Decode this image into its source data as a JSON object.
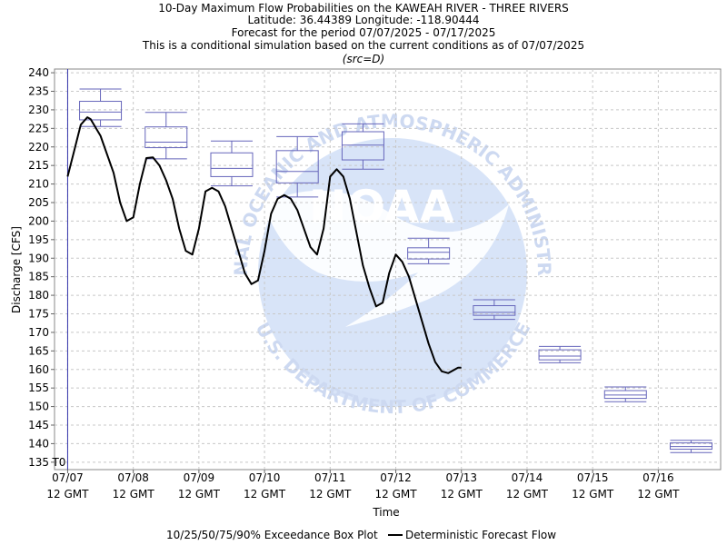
{
  "title_lines": [
    "10-Day Maximum Flow Probabilities on the KAWEAH RIVER - THREE RIVERS",
    "Latitude: 36.44389 Longitude: -118.90444",
    "Forecast for the period 07/07/2025 - 07/17/2025",
    "This is a conditional simulation based on the current conditions as of 07/07/2025"
  ],
  "subtitle": "(src=D)",
  "watermark": {
    "text_top": "NATIONAL OCEANIC AND ATMOSPHERIC ADMINISTRATION",
    "text_center": "NOAA",
    "text_bottom": "U.S. DEPARTMENT OF COMMERCE"
  },
  "t0_label": "T0",
  "legend": {
    "box_label": "10/25/50/75/90% Exceedance Box Plot",
    "line_label": "Deterministic Forecast Flow"
  },
  "colors": {
    "box": "#6666bb",
    "line": "#000000",
    "t0": "#3333aa",
    "grid": "#c8c8c8",
    "watermark": "#d6e2f6"
  },
  "chart_data": {
    "type": "line",
    "xlabel": "Time",
    "ylabel": "Discharge [CFS]",
    "ylim": [
      133,
      241
    ],
    "xlim": [
      -0.2,
      9.95
    ],
    "yticks": [
      135,
      140,
      145,
      150,
      155,
      160,
      165,
      170,
      175,
      180,
      185,
      190,
      195,
      200,
      205,
      210,
      215,
      220,
      225,
      230,
      235,
      240
    ],
    "xticks": [
      {
        "pos": 0,
        "line1": "07/07",
        "line2": "12 GMT"
      },
      {
        "pos": 1,
        "line1": "07/08",
        "line2": "12 GMT"
      },
      {
        "pos": 2,
        "line1": "07/09",
        "line2": "12 GMT"
      },
      {
        "pos": 3,
        "line1": "07/10",
        "line2": "12 GMT"
      },
      {
        "pos": 4,
        "line1": "07/11",
        "line2": "12 GMT"
      },
      {
        "pos": 5,
        "line1": "07/12",
        "line2": "12 GMT"
      },
      {
        "pos": 6,
        "line1": "07/13",
        "line2": "12 GMT"
      },
      {
        "pos": 7,
        "line1": "07/14",
        "line2": "12 GMT"
      },
      {
        "pos": 8,
        "line1": "07/15",
        "line2": "12 GMT"
      },
      {
        "pos": 9,
        "line1": "07/16",
        "line2": "12 GMT"
      }
    ],
    "grid": true,
    "t0": 0,
    "boxes": [
      {
        "x": 0.5,
        "p10": 225.5,
        "p25": 227.3,
        "p50": 229.4,
        "p75": 232.3,
        "p90": 235.6
      },
      {
        "x": 1.5,
        "p10": 216.8,
        "p25": 219.8,
        "p50": 221.3,
        "p75": 225.4,
        "p90": 229.3
      },
      {
        "x": 2.5,
        "p10": 209.5,
        "p25": 212.0,
        "p50": 214.2,
        "p75": 218.4,
        "p90": 221.6
      },
      {
        "x": 3.5,
        "p10": 206.5,
        "p25": 210.3,
        "p50": 213.4,
        "p75": 219.0,
        "p90": 222.8
      },
      {
        "x": 4.5,
        "p10": 214.0,
        "p25": 216.5,
        "p50": 220.5,
        "p75": 224.1,
        "p90": 226.2
      },
      {
        "x": 5.5,
        "p10": 188.5,
        "p25": 189.8,
        "p50": 191.6,
        "p75": 192.8,
        "p90": 195.4
      },
      {
        "x": 6.5,
        "p10": 173.5,
        "p25": 174.6,
        "p50": 175.4,
        "p75": 177.2,
        "p90": 178.8
      },
      {
        "x": 7.5,
        "p10": 161.8,
        "p25": 162.6,
        "p50": 163.6,
        "p75": 165.3,
        "p90": 166.2
      },
      {
        "x": 8.5,
        "p10": 151.3,
        "p25": 152.2,
        "p50": 153.1,
        "p75": 154.3,
        "p90": 155.3
      },
      {
        "x": 9.5,
        "p10": 137.6,
        "p25": 138.5,
        "p50": 139.2,
        "p75": 140.2,
        "p90": 140.9
      }
    ],
    "line": {
      "x": [
        0,
        0.1,
        0.2,
        0.3,
        0.35,
        0.5,
        0.7,
        0.8,
        0.9,
        1.0,
        1.1,
        1.2,
        1.3,
        1.4,
        1.5,
        1.6,
        1.7,
        1.8,
        1.9,
        2.0,
        2.1,
        2.2,
        2.3,
        2.4,
        2.5,
        2.6,
        2.7,
        2.8,
        2.9,
        3.0,
        3.1,
        3.2,
        3.3,
        3.4,
        3.5,
        3.6,
        3.7,
        3.8,
        3.9,
        4.0,
        4.1,
        4.2,
        4.3,
        4.4,
        4.5,
        4.6,
        4.7,
        4.8,
        4.9,
        5.0,
        5.1,
        5.2,
        5.3,
        5.4,
        5.5,
        5.6,
        5.7,
        5.8,
        5.9,
        5.95,
        6.0
      ],
      "y": [
        212.0,
        219.0,
        226.0,
        228.0,
        227.5,
        223.0,
        213.0,
        205.0,
        200.0,
        201.0,
        210.0,
        217.0,
        217.2,
        215.0,
        211.0,
        206.0,
        198.0,
        192.0,
        191.0,
        198.0,
        208.0,
        209.0,
        208.0,
        204.0,
        198.0,
        192.0,
        186.0,
        183.0,
        184.0,
        192.0,
        202.0,
        206.0,
        207.0,
        206.0,
        203.0,
        198.0,
        193.0,
        191.0,
        198.0,
        212.0,
        214.0,
        212.0,
        206.0,
        197.0,
        188.0,
        182.0,
        177.0,
        178.0,
        186.0,
        191.0,
        189.0,
        185.0,
        179.0,
        173.0,
        167.0,
        162.0,
        159.5,
        159.0,
        160.0,
        160.5,
        160.5
      ]
    }
  }
}
